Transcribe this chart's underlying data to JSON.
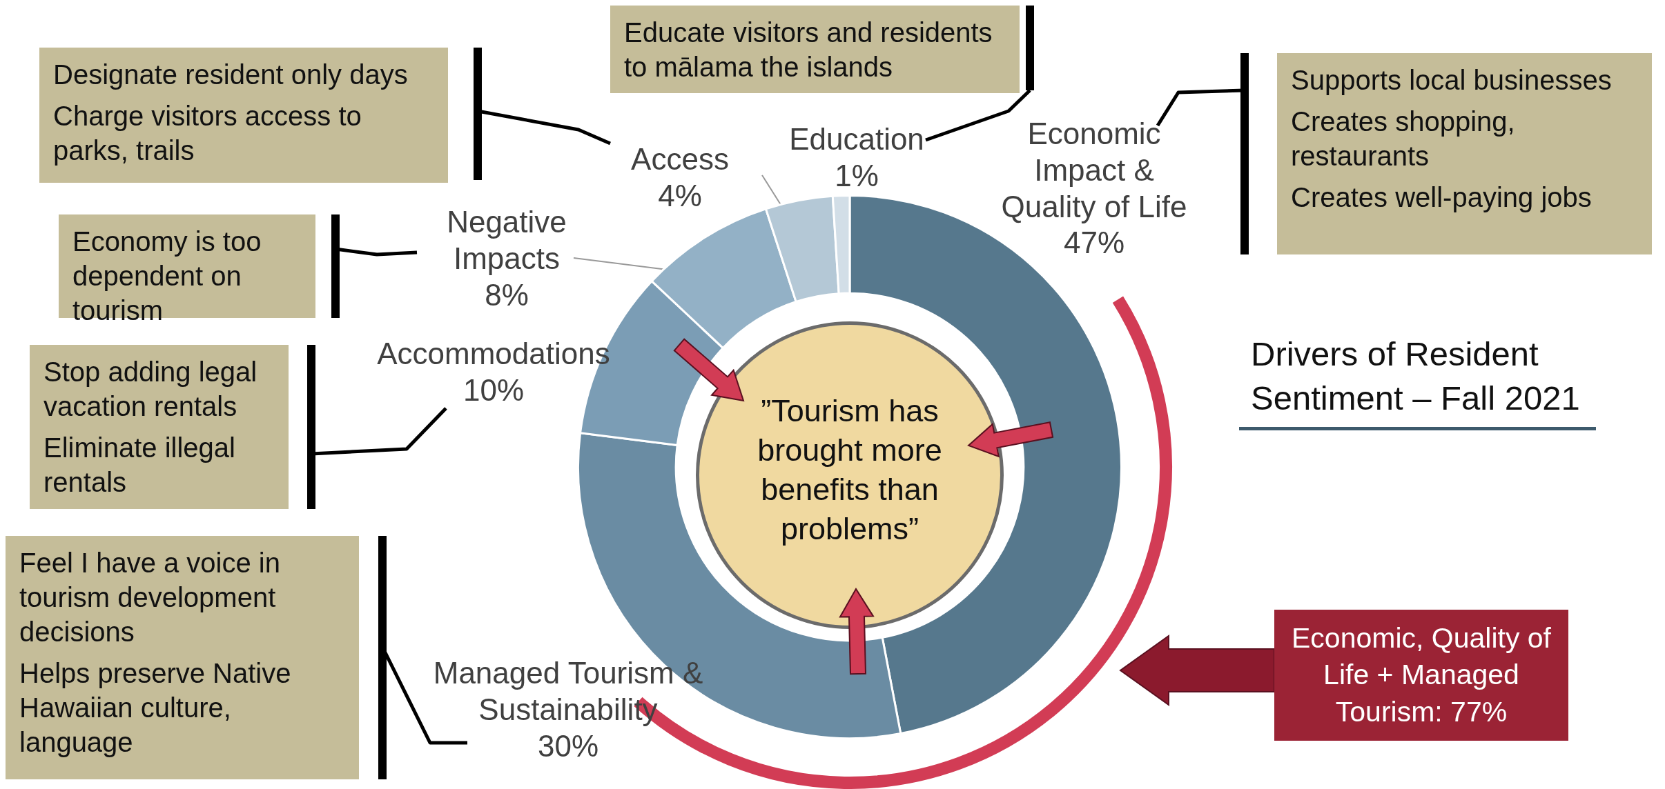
{
  "chart_data": {
    "type": "donut",
    "title": "Drivers of Resident Sentiment – Fall 2021",
    "categories": [
      "Economic Impact & Quality of Life",
      "Managed Tourism & Sustainability",
      "Accommodations",
      "Negative Impacts",
      "Access",
      "Education"
    ],
    "values": [
      47,
      30,
      10,
      8,
      4,
      1
    ],
    "colors": [
      "#56788d",
      "#6a8ca3",
      "#7b9db5",
      "#93b1c6",
      "#b4c8d6",
      "#d2dee7"
    ],
    "value_labels": [
      "47%",
      "30%",
      "10%",
      "8%",
      "4%",
      "1%"
    ],
    "annotations": [
      "Educate visitors and residents to mālama the islands",
      "Designate resident only days",
      "Charge visitors access to parks, trails",
      "Supports local businesses",
      "Creates shopping, restaurants",
      "Creates well-paying jobs",
      "Economy is too dependent on tourism",
      "Stop adding legal vacation rentals",
      "Eliminate illegal rentals",
      "Feel I have a voice in tourism development decisions",
      "Helps preserve Native Hawaiian culture, language",
      "”Tourism has brought more benefits than problems”",
      "Economic, Quality of Life + Managed Tourism: 77%"
    ],
    "legend": false
  }
}
